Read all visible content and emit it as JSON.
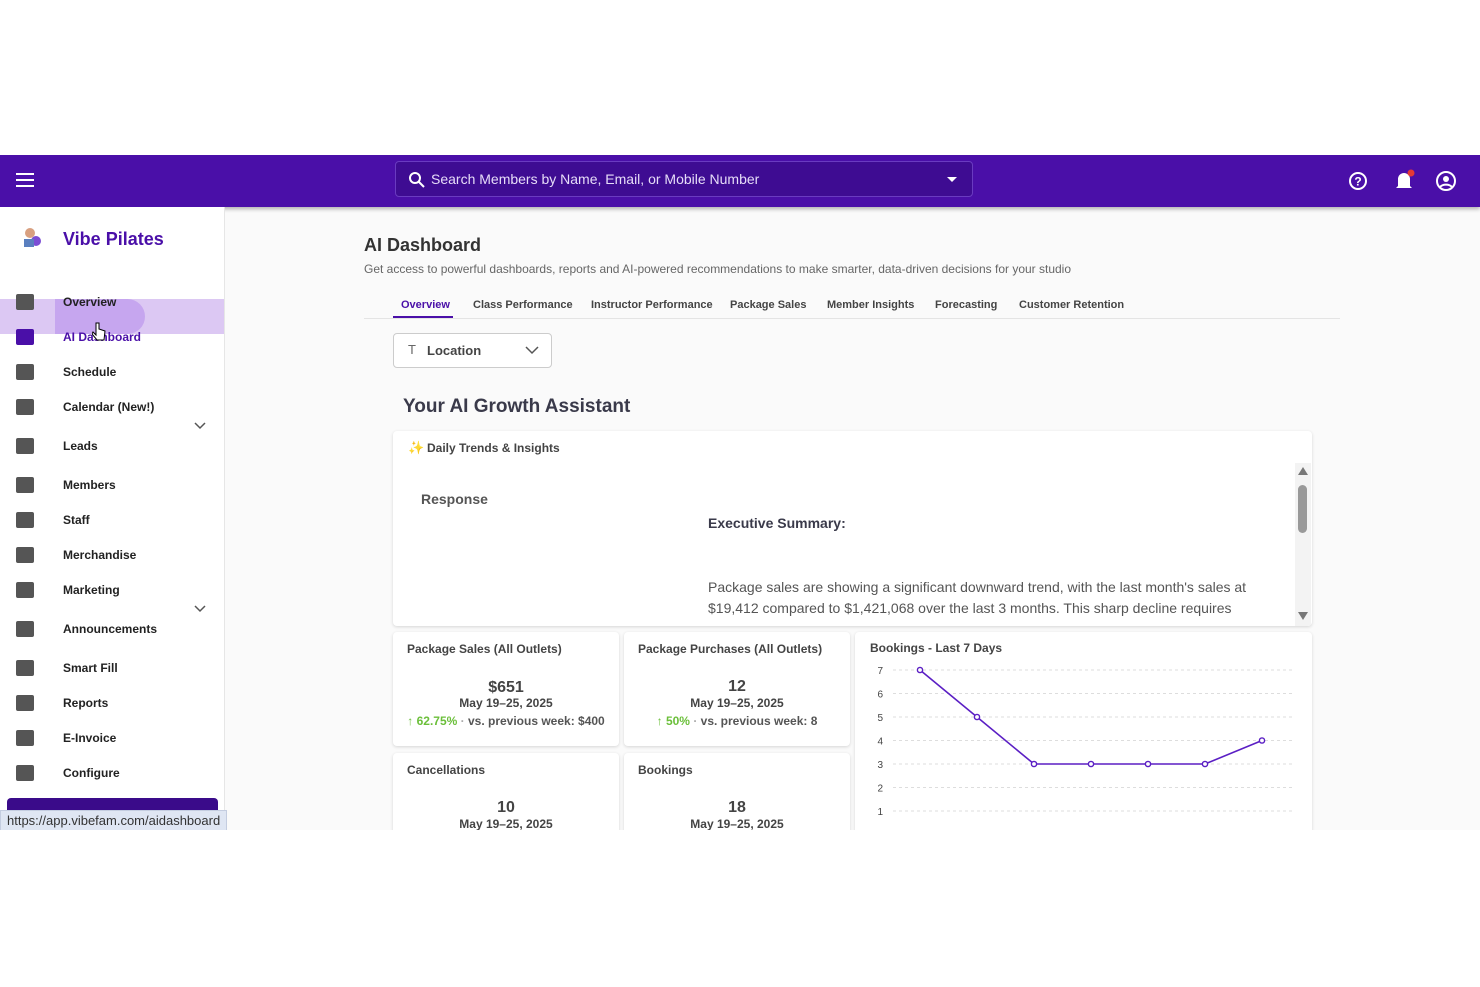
{
  "header": {
    "search_placeholder": "Search Members by Name, Email, or Mobile Number"
  },
  "sidebar": {
    "brand": "Vibe Pilates",
    "items": [
      "Overview",
      "AI Dashboard",
      "Schedule",
      "Calendar (New!)",
      "Leads",
      "Members",
      "Staff",
      "Merchandise",
      "Marketing",
      "Announcements",
      "Smart Fill",
      "Reports",
      "E-Invoice",
      "Configure"
    ]
  },
  "page": {
    "title": "AI Dashboard",
    "subtitle": "Get access to powerful dashboards, reports and AI-powered recommendations to make smarter, data-driven decisions for your studio",
    "tabs": [
      "Overview",
      "Class Performance",
      "Instructor Performance",
      "Package Sales",
      "Member Insights",
      "Forecasting",
      "Customer Retention"
    ],
    "location_filter": "Location",
    "assistant_title": "Your AI Growth Assistant",
    "insights_title": "Daily Trends & Insights",
    "response_label": "Response",
    "summary_heading": "Executive Summary:",
    "summary_text": "Package sales are showing a significant downward trend, with the last month's sales at $19,412 compared to $1,421,068 over the last 3 months. This sharp decline requires"
  },
  "cards": [
    {
      "title": "Package Sales (All Outlets)",
      "value": "$651",
      "period": "May 19–25, 2025",
      "change": "62.75%",
      "comparison": "vs. previous week: $400"
    },
    {
      "title": "Package Purchases (All Outlets)",
      "value": "12",
      "period": "May 19–25, 2025",
      "change": "50%",
      "comparison": "vs. previous week: 8"
    },
    {
      "title": "Cancellations",
      "value": "10",
      "period": "May 19–25, 2025"
    },
    {
      "title": "Bookings",
      "value": "18",
      "period": "May 19–25, 2025"
    }
  ],
  "chart_data": {
    "type": "line",
    "title": "Bookings - Last 7 Days",
    "categories": [
      null,
      null,
      null,
      null,
      null,
      null,
      null
    ],
    "series": [
      {
        "name": null,
        "color": "#5b1fc4",
        "values": [
          7,
          5,
          3,
          3,
          3,
          3,
          4
        ]
      }
    ],
    "ylim": [
      0,
      7
    ],
    "yticks": [
      1,
      2,
      3,
      4,
      5,
      6,
      7
    ],
    "grid": true
  },
  "status_url": "https://app.vibefam.com/aidashboard"
}
